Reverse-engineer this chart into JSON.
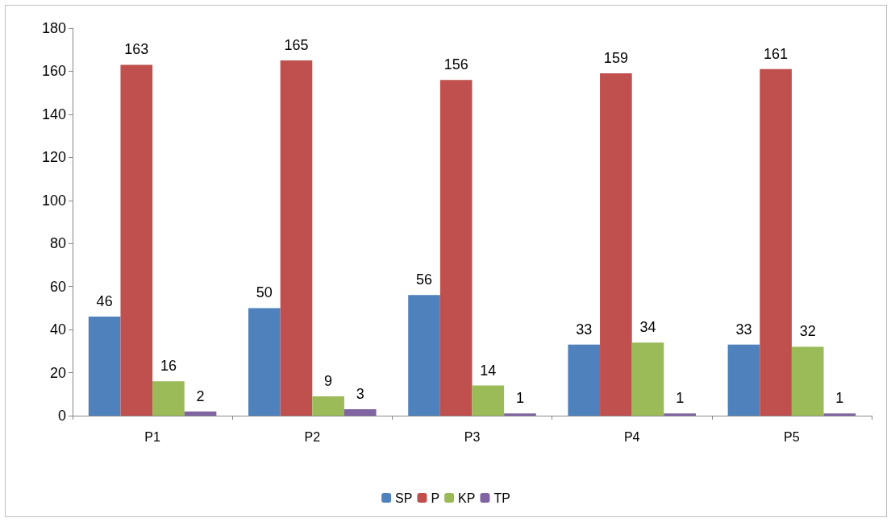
{
  "chart_data": {
    "type": "bar",
    "categories": [
      "P1",
      "P2",
      "P3",
      "P4",
      "P5"
    ],
    "series": [
      {
        "name": "SP",
        "color": "#4f81bd",
        "values": [
          46,
          50,
          56,
          33,
          33
        ]
      },
      {
        "name": "P",
        "color": "#c0504d",
        "values": [
          163,
          165,
          156,
          159,
          161
        ]
      },
      {
        "name": "KP",
        "color": "#9bbb59",
        "values": [
          16,
          9,
          14,
          34,
          32
        ]
      },
      {
        "name": "TP",
        "color": "#8064a2",
        "values": [
          2,
          3,
          1,
          1,
          1
        ]
      }
    ],
    "ylim": [
      0,
      180
    ],
    "yticks": [
      0,
      20,
      40,
      60,
      80,
      100,
      120,
      140,
      160,
      180
    ],
    "grid": false,
    "legend": "bottom",
    "data_labels": true
  }
}
